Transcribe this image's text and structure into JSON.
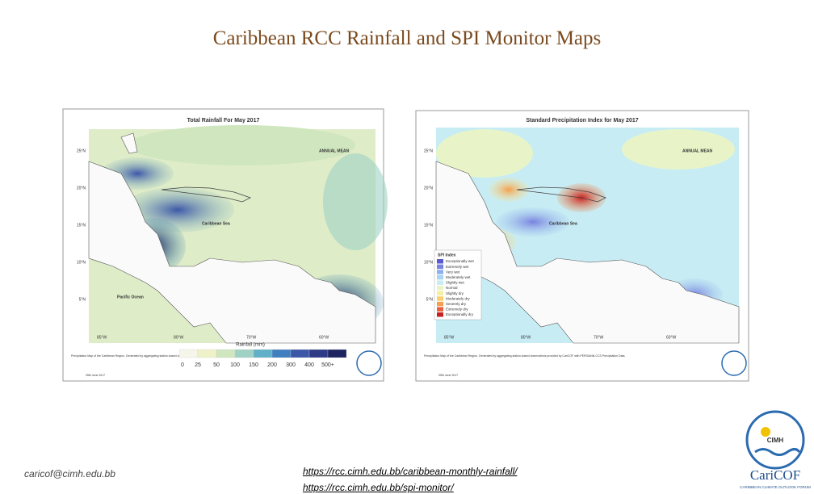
{
  "header": {
    "title": "Caribbean RCC Rainfall and SPI Monitor Maps"
  },
  "maps": [
    {
      "title": "Total Rainfall For May 2017",
      "stamp": "ANNUAL MEAN",
      "sea": "Caribbean Sea",
      "ocean": "Pacific Ocean",
      "lat_labels": [
        "25°N",
        "20°N",
        "15°N",
        "10°N",
        "5°N"
      ],
      "lon_labels": [
        "85°W",
        "80°W",
        "70°W",
        "60°W"
      ],
      "legend_title": "Rainfall (mm)",
      "legend": [
        {
          "label": "0",
          "color": "#f5f5ea"
        },
        {
          "label": "25",
          "color": "#eef2c8"
        },
        {
          "label": "50",
          "color": "#cfe6bf"
        },
        {
          "label": "100",
          "color": "#9fd2c4"
        },
        {
          "label": "150",
          "color": "#5fb0c8"
        },
        {
          "label": "200",
          "color": "#3f7fbf"
        },
        {
          "label": "300",
          "color": "#3d57a8"
        },
        {
          "label": "400",
          "color": "#2e3a86"
        },
        {
          "label": "500+",
          "color": "#1e2460"
        }
      ],
      "credit": "Precipitation Map of the Caribbean Region. Generated by aggregating station-based observations provided by CariCOF with PERSIANN-CCS Precipitation Data.",
      "date": "05th June 2017"
    },
    {
      "title": "Standard Precipitation Index for May 2017",
      "stamp": "ANNUAL MEAN",
      "sea": "Caribbean Sea",
      "lat_labels": [
        "25°N",
        "20°N",
        "15°N",
        "10°N",
        "5°N"
      ],
      "lon_labels": [
        "85°W",
        "80°W",
        "70°W",
        "60°W"
      ],
      "legend_title": "SPI Index",
      "legend": [
        {
          "label": "Exceptionally wet",
          "color": "#5a5ad0"
        },
        {
          "label": "Extremely wet",
          "color": "#7a82e0"
        },
        {
          "label": "Very wet",
          "color": "#8fb0ee"
        },
        {
          "label": "Moderately wet",
          "color": "#a8d4f0"
        },
        {
          "label": "Slightly wet",
          "color": "#c8ecf4"
        },
        {
          "label": "Normal",
          "color": "#e8f4c8"
        },
        {
          "label": "Slightly dry",
          "color": "#f4f0a0"
        },
        {
          "label": "Moderately dry",
          "color": "#f8d070"
        },
        {
          "label": "Severely dry",
          "color": "#f4a050"
        },
        {
          "label": "Extremely dry",
          "color": "#e86040"
        },
        {
          "label": "Exceptionally dry",
          "color": "#c82020"
        }
      ],
      "credit": "Precipitation Map of the Caribbean Region. Generated by aggregating station-based observations provided by CariCOF with PERSIANN-CCS Precipitation Data.",
      "date": "05th June 2017"
    }
  ],
  "footer": {
    "email": "caricof@cimh.edu.bb",
    "links": [
      "https://rcc.cimh.edu.bb/caribbean-monthly-rainfall/",
      "https://rcc.cimh.edu.bb/spi-monitor/"
    ]
  },
  "logo": {
    "name": "CIMH",
    "brand": "CariCOF",
    "tagline": "CARIBBEAN CLIMATE OUTLOOK FORUM"
  }
}
